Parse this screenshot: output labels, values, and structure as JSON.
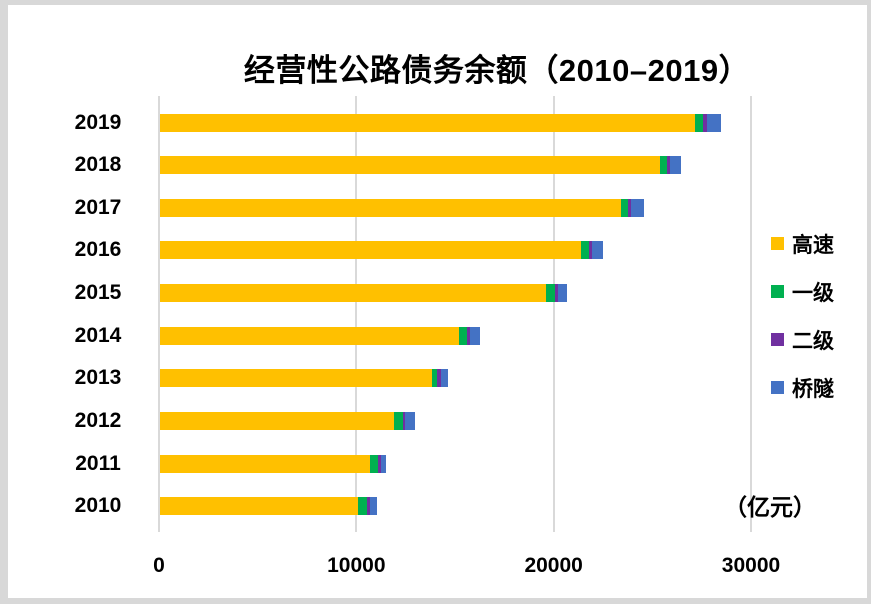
{
  "title": "经营性公路债务余额（2010–2019）",
  "unit_label": "（亿元）",
  "colors": {
    "expressway": "#FFC000",
    "grade1": "#00B050",
    "grade2": "#7030A0",
    "bridge_tunnel": "#4472C4",
    "gridline": "#D9D9D9",
    "frame": "#D8D8D8",
    "text": "#000000",
    "background": "#FFFFFF"
  },
  "x_axis": {
    "tick_labels": [
      "0",
      "10000",
      "20000",
      "30000"
    ],
    "tick_values": [
      0,
      10000,
      20000,
      30000
    ],
    "max": 30000
  },
  "legend": {
    "position": "right",
    "items": [
      {
        "label": "高速",
        "key": "expressway",
        "color": "#FFC000"
      },
      {
        "label": "一级",
        "key": "grade1",
        "color": "#00B050"
      },
      {
        "label": "二级",
        "key": "grade2",
        "color": "#7030A0"
      },
      {
        "label": "桥隧",
        "key": "bridge-tunnel",
        "color": "#4472C4"
      }
    ]
  },
  "chart_data": {
    "type": "bar",
    "orientation": "horizontal",
    "stacked": true,
    "title": "经营性公路债务余额（2010–2019）",
    "unit": "亿元",
    "categories": [
      "2019",
      "2018",
      "2017",
      "2016",
      "2015",
      "2014",
      "2013",
      "2012",
      "2011",
      "2010"
    ],
    "series": [
      {
        "name": "高速",
        "key": "expressway",
        "color": "#FFC000",
        "values": [
          27100,
          25320,
          23340,
          21320,
          19540,
          15150,
          13760,
          11860,
          10630,
          10010
        ]
      },
      {
        "name": "一级",
        "key": "grade1",
        "color": "#00B050",
        "values": [
          410,
          360,
          390,
          420,
          490,
          430,
          300,
          430,
          440,
          470
        ]
      },
      {
        "name": "二级",
        "key": "grade2",
        "color": "#7030A0",
        "values": [
          190,
          150,
          150,
          140,
          130,
          120,
          170,
          120,
          150,
          150
        ]
      },
      {
        "name": "桥隧",
        "key": "bridge-tunnel",
        "color": "#4472C4",
        "values": [
          710,
          560,
          640,
          570,
          480,
          510,
          370,
          500,
          250,
          390
        ]
      }
    ],
    "xlim": [
      0,
      30000
    ],
    "grid": "vertical-only",
    "legend_position": "right"
  }
}
